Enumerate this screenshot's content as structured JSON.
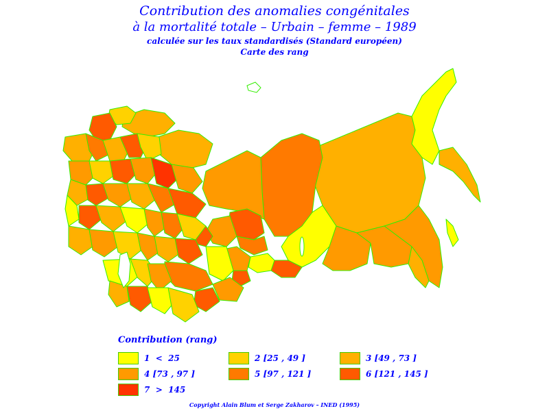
{
  "title": {
    "line1": "Contribution des anomalies congénitales",
    "line2": "à la mortalité totale – Urbain – femme – 1989",
    "line3": "calculée sur les taux standardisés (Standard européen)",
    "line4": "Carte des rang"
  },
  "legend": {
    "title": "Contribution (rang)",
    "items": [
      {
        "label": "1  <  25",
        "color": "#ffff00"
      },
      {
        "label": "2 [25 , 49 ]",
        "color": "#ffd200"
      },
      {
        "label": "3 [49 , 73 ]",
        "color": "#ffb000"
      },
      {
        "label": "4 [73 , 97 ]",
        "color": "#ff9a00"
      },
      {
        "label": "5 [97 , 121 ]",
        "color": "#ff7a00"
      },
      {
        "label": "6 [121 , 145 ]",
        "color": "#ff5a00"
      },
      {
        "label": "7  >  145",
        "color": "#ff3300"
      }
    ]
  },
  "copyright": "Copyright Alain Blum et Serge Zakharov – INED (1995)",
  "colors": {
    "text": "#0000ff",
    "border": "#33ee00"
  }
}
